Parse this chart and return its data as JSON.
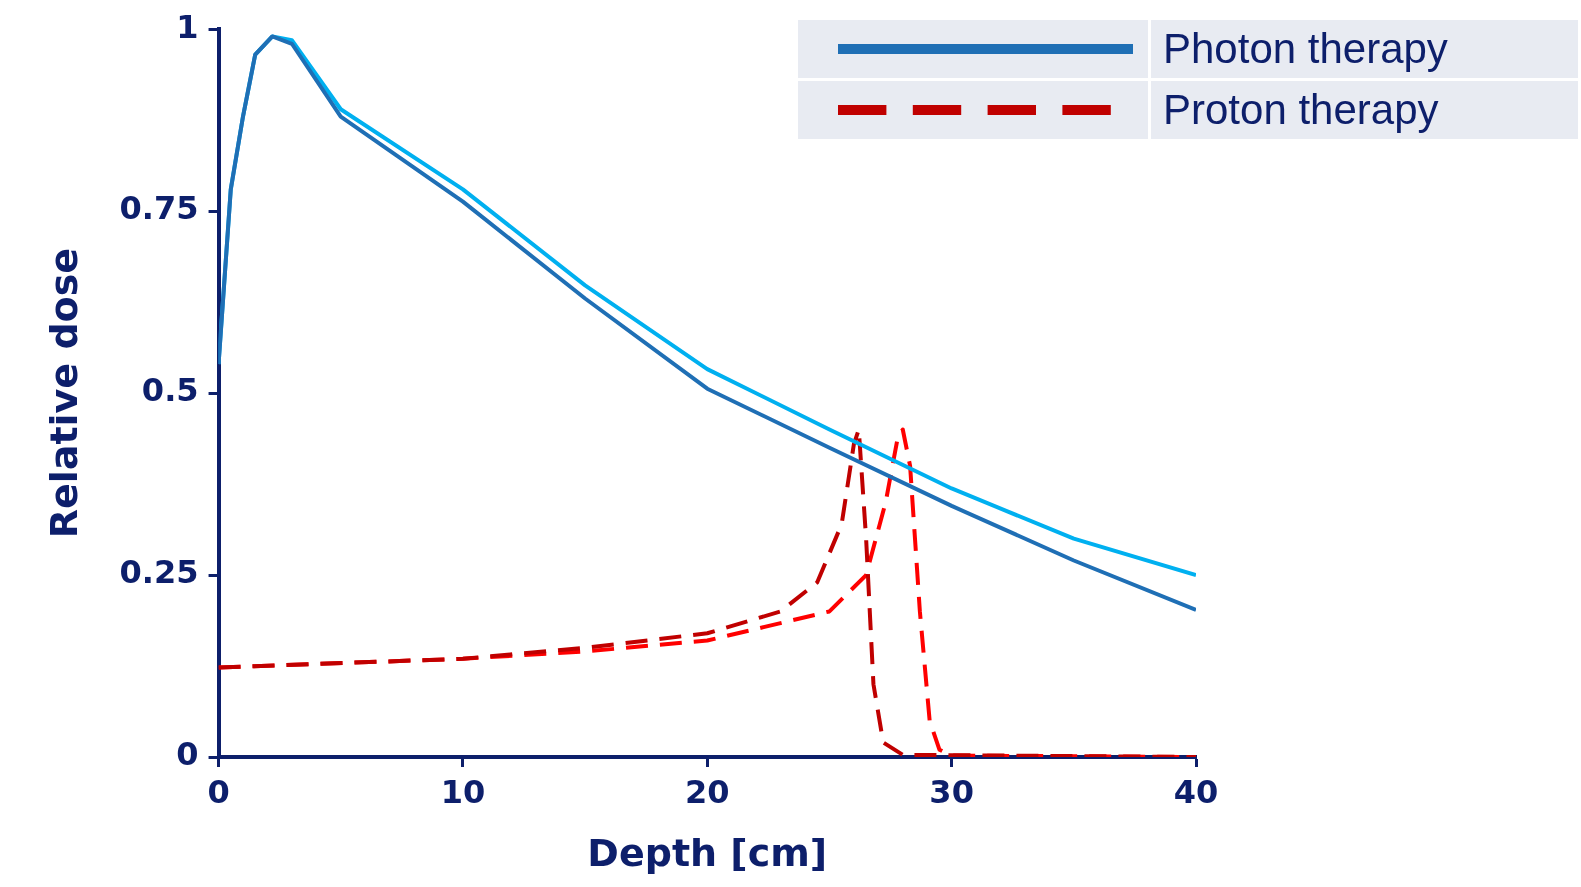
{
  "chart_data": {
    "type": "line",
    "xlabel": "Depth [cm]",
    "ylabel": "Relative dose",
    "xlim": [
      0,
      40
    ],
    "ylim": [
      0,
      1
    ],
    "xticks": [
      0,
      10,
      20,
      30,
      40
    ],
    "yticks": [
      0,
      0.25,
      0.5,
      0.75,
      1
    ],
    "grid": false,
    "legend": "top right",
    "marker": "none",
    "series": [
      {
        "name": "Photon therapy",
        "color": "#1f6fb5",
        "line_style": "solid",
        "x": [
          0,
          0.5,
          1,
          1.5,
          2.2,
          3,
          5,
          10,
          15,
          20,
          25,
          30,
          35,
          40
        ],
        "values": [
          0.54,
          0.78,
          0.88,
          0.965,
          0.99,
          0.98,
          0.88,
          0.763,
          0.63,
          0.506,
          0.425,
          0.345,
          0.27,
          0.202
        ]
      },
      {
        "color": "#00b0f0",
        "line_style": "solid",
        "x": [
          0,
          0.5,
          1,
          1.5,
          2.2,
          3,
          5,
          10,
          15,
          20,
          25,
          30,
          35,
          40
        ],
        "values": [
          0.54,
          0.78,
          0.88,
          0.965,
          0.99,
          0.985,
          0.89,
          0.78,
          0.648,
          0.533,
          0.45,
          0.369,
          0.3,
          0.25
        ]
      },
      {
        "name": "Proton therapy",
        "color": "#c00000",
        "line_style": "dashed",
        "x": [
          0,
          10,
          15,
          20,
          23,
          24.5,
          25.5,
          26,
          26.2,
          26.5,
          26.8,
          27.2,
          28,
          40
        ],
        "values": [
          0.123,
          0.135,
          0.15,
          0.17,
          0.2,
          0.24,
          0.32,
          0.43,
          0.45,
          0.3,
          0.1,
          0.02,
          0.003,
          0
        ]
      },
      {
        "color": "#ff0000",
        "line_style": "dashed",
        "x": [
          0,
          10,
          15,
          20,
          25,
          26.5,
          27.3,
          27.8,
          28,
          28.3,
          28.7,
          29.1,
          29.5,
          30,
          40
        ],
        "values": [
          0.123,
          0.135,
          0.145,
          0.16,
          0.2,
          0.25,
          0.35,
          0.44,
          0.45,
          0.4,
          0.2,
          0.05,
          0.01,
          0.002,
          0
        ]
      }
    ]
  }
}
